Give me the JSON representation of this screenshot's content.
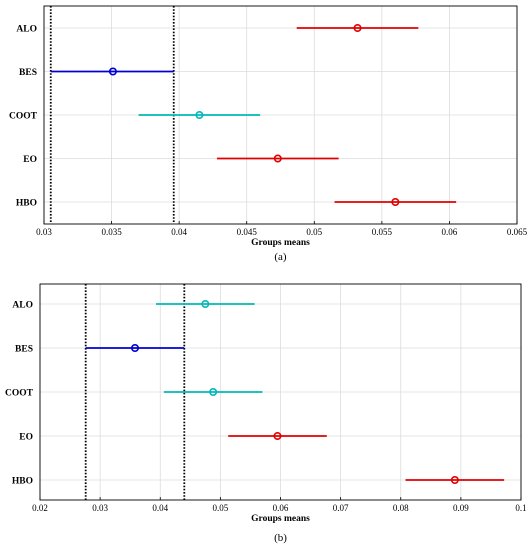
{
  "chart_data": [
    {
      "type": "scatter",
      "subtype": "interval",
      "panel_label": "(a)",
      "xlabel": "Groups means",
      "ylabel": "",
      "title": "",
      "categories": [
        "ALO",
        "BES",
        "COOT",
        "EO",
        "HBO"
      ],
      "means": [
        0.0532,
        0.0351,
        0.0415,
        0.0473,
        0.056
      ],
      "lower": [
        0.0487,
        0.0305,
        0.037,
        0.0428,
        0.0515
      ],
      "upper": [
        0.0577,
        0.0396,
        0.046,
        0.0518,
        0.0605
      ],
      "colors": [
        "#e00000",
        "#0000d0",
        "#00b8b8",
        "#e00000",
        "#e00000"
      ],
      "reference_lines": [
        0.0305,
        0.0396
      ],
      "xlim": [
        0.03,
        0.065
      ],
      "xticks": [
        0.03,
        0.035,
        0.04,
        0.045,
        0.05,
        0.055,
        0.06,
        0.065
      ],
      "xtick_labels": [
        "0.03",
        "0.035",
        "0.04",
        "0.045",
        "0.05",
        "0.055",
        "0.06",
        "0.065"
      ],
      "grid": true
    },
    {
      "type": "scatter",
      "subtype": "interval",
      "panel_label": "(b)",
      "xlabel": "Groups means",
      "ylabel": "",
      "title": "",
      "categories": [
        "ALO",
        "BES",
        "COOT",
        "EO",
        "HBO"
      ],
      "means": [
        0.0475,
        0.0358,
        0.0488,
        0.0595,
        0.089
      ],
      "lower": [
        0.0393,
        0.0276,
        0.0406,
        0.0513,
        0.0808
      ],
      "upper": [
        0.0557,
        0.044,
        0.057,
        0.0677,
        0.0972
      ],
      "colors": [
        "#00b8b8",
        "#0000d0",
        "#00b8b8",
        "#e00000",
        "#e00000"
      ],
      "reference_lines": [
        0.0276,
        0.044
      ],
      "xlim": [
        0.02,
        0.1
      ],
      "xticks": [
        0.02,
        0.03,
        0.04,
        0.05,
        0.06,
        0.07,
        0.08,
        0.09,
        0.1
      ],
      "xtick_labels": [
        "0.02",
        "0.03",
        "0.04",
        "0.05",
        "0.06",
        "0.07",
        "0.08",
        "0.09",
        "0.1"
      ],
      "grid": true
    }
  ]
}
